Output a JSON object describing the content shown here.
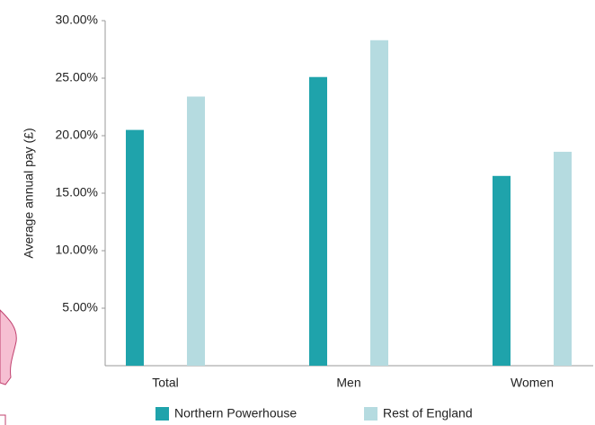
{
  "chart_data": {
    "type": "bar",
    "y_label": "Average annual pay (£)",
    "categories": [
      "Total",
      "Men",
      "Women"
    ],
    "series": [
      {
        "name": "Northern Powerhouse",
        "color": "#1fa3ab",
        "values": [
          20.5,
          25.1,
          16.5
        ]
      },
      {
        "name": "Rest of England",
        "color": "#b5dbe0",
        "values": [
          23.4,
          28.3,
          18.6
        ]
      }
    ],
    "ylim": [
      0,
      30
    ],
    "yticks": [
      {
        "value": 5,
        "label": "5.00%"
      },
      {
        "value": 10,
        "label": "10.00%"
      },
      {
        "value": 15,
        "label": "15.00%"
      },
      {
        "value": 20,
        "label": "20.00%"
      },
      {
        "value": 25,
        "label": "25.00%"
      },
      {
        "value": 30,
        "label": "30.00%"
      }
    ],
    "legend": "bottom"
  }
}
